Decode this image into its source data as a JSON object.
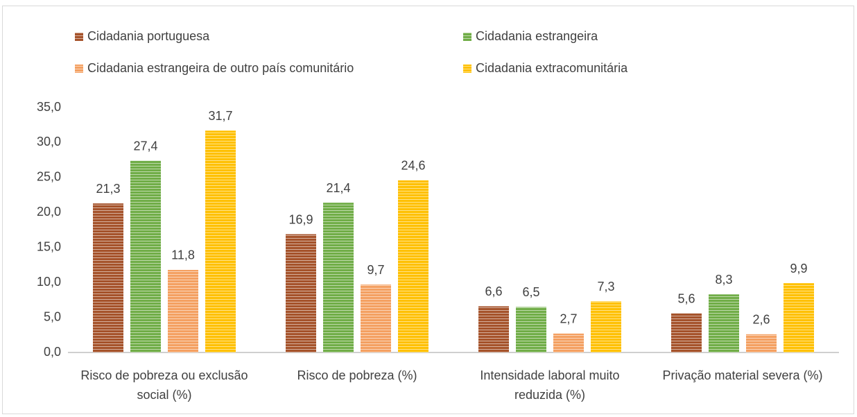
{
  "chart_data": {
    "type": "bar",
    "categories": [
      "Risco de pobreza ou exclusão social (%)",
      "Risco de pobreza (%)",
      "Intensidade laboral muito reduzida (%)",
      "Privação material severa (%)"
    ],
    "series": [
      {
        "name": "Cidadania portuguesa",
        "color": "#a5522a",
        "values": [
          21.3,
          16.9,
          6.6,
          5.6
        ],
        "value_labels": [
          "21,3",
          "16,9",
          "6,6",
          "5,6"
        ]
      },
      {
        "name": "Cidadania estrangeira",
        "color": "#70ad47",
        "values": [
          27.4,
          21.4,
          6.5,
          8.3
        ],
        "value_labels": [
          "27,4",
          "21,4",
          "6,5",
          "8,3"
        ]
      },
      {
        "name": "Cidadania estrangeira de outro país comunitário",
        "color": "#f4a061",
        "values": [
          11.8,
          9.7,
          2.7,
          2.6
        ],
        "value_labels": [
          "11,8",
          "9,7",
          "2,7",
          "2,6"
        ]
      },
      {
        "name": "Cidadania extracomunitária",
        "color": "#ffc000",
        "values": [
          31.7,
          24.6,
          7.3,
          9.9
        ],
        "value_labels": [
          "31,7",
          "24,6",
          "7,3",
          "9,9"
        ]
      }
    ],
    "ylim": [
      0,
      35
    ],
    "yticks": [
      {
        "value": 0,
        "label": "0,0"
      },
      {
        "value": 5,
        "label": "5,0"
      },
      {
        "value": 10,
        "label": "10,0"
      },
      {
        "value": 15,
        "label": "15,0"
      },
      {
        "value": 20,
        "label": "20,0"
      },
      {
        "value": 25,
        "label": "25,0"
      },
      {
        "value": 30,
        "label": "30,0"
      },
      {
        "value": 35,
        "label": "35,0"
      }
    ],
    "grid": false
  }
}
